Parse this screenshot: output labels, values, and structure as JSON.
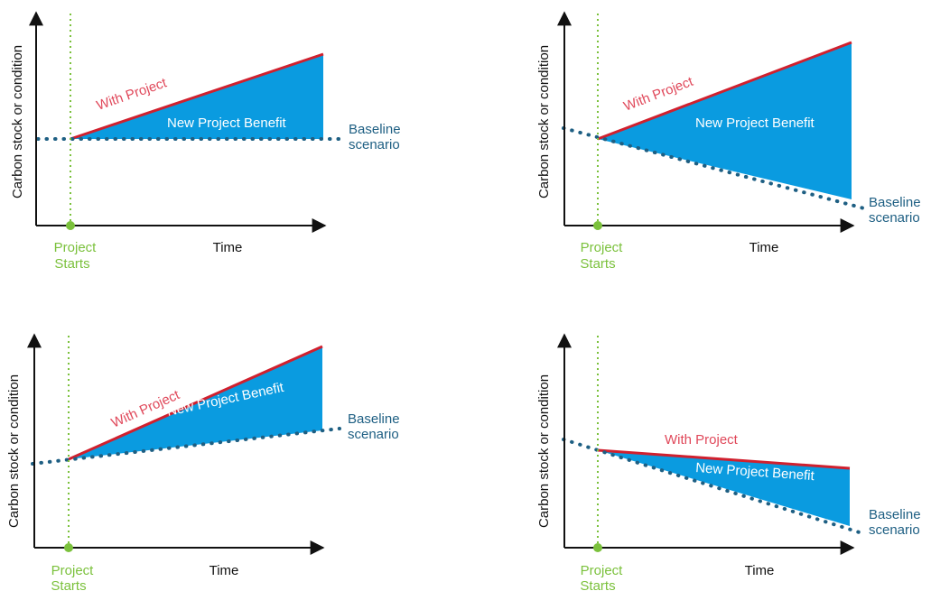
{
  "colors": {
    "benefit_fill": "#0A9BE0",
    "with_project_line": "#D0202E",
    "with_project_text": "#E0485A",
    "baseline": "#1E5F83",
    "project_start": "#7BC13C",
    "axis": "#111111"
  },
  "labels": {
    "y_axis": "Carbon stock or condition",
    "x_axis": "Time",
    "project_starts_line1": "Project",
    "project_starts_line2": "Starts",
    "with_project": "With Project",
    "benefit": "New Project Benefit",
    "baseline_line1": "Baseline",
    "baseline_line2": "scenario"
  },
  "panels": [
    {
      "id": "top-left",
      "baseline_trend": "flat",
      "with_project_trend": "rising"
    },
    {
      "id": "top-right",
      "baseline_trend": "declining",
      "with_project_trend": "rising"
    },
    {
      "id": "bottom-left",
      "baseline_trend": "rising",
      "with_project_trend": "rising faster"
    },
    {
      "id": "bottom-right",
      "baseline_trend": "declining",
      "with_project_trend": "declining slower"
    }
  ]
}
